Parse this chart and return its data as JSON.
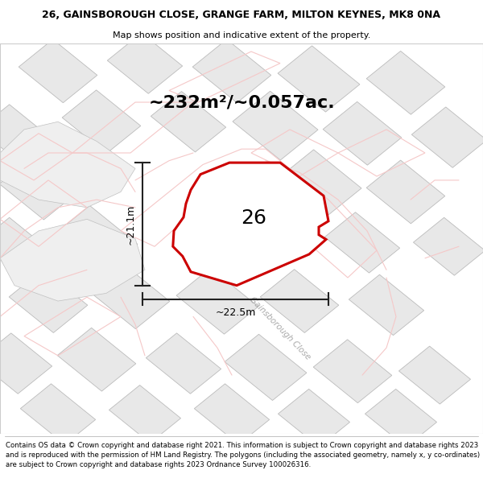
{
  "title_line1": "26, GAINSBOROUGH CLOSE, GRANGE FARM, MILTON KEYNES, MK8 0NA",
  "title_line2": "Map shows position and indicative extent of the property.",
  "footer_text": "Contains OS data © Crown copyright and database right 2021. This information is subject to Crown copyright and database rights 2023 and is reproduced with the permission of HM Land Registry. The polygons (including the associated geometry, namely x, y co-ordinates) are subject to Crown copyright and database rights 2023 Ordnance Survey 100026316.",
  "area_label": "~232m²/~0.057ac.",
  "plot_number": "26",
  "width_label": "~22.5m",
  "height_label": "~21.1m",
  "background_color": "#ffffff",
  "road_color": "#f5c8c8",
  "building_fill": "#e8e8e8",
  "building_edge": "#bbbbbb",
  "plot_poly_color": "#cc0000",
  "street_label": "Gainsborough Close",
  "dim_line_color": "#222222",
  "title_fontsize": 9,
  "subtitle_fontsize": 8,
  "area_fontsize": 16,
  "plot_num_fontsize": 18,
  "footer_fontsize": 6.2
}
